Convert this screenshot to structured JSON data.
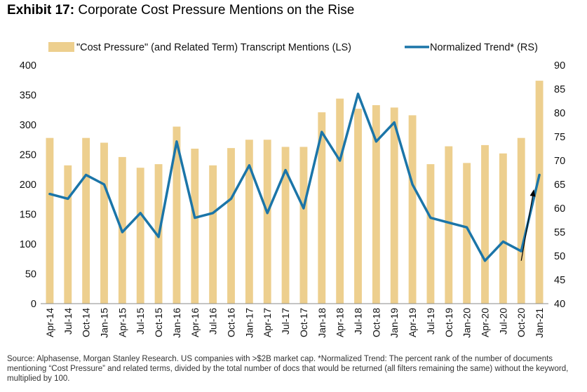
{
  "title": {
    "lead": "Exhibit 17:",
    "text": "Corporate Cost Pressure Mentions on the Rise"
  },
  "source": "Source: Alphasense, Morgan Stanley Research. US companies with >$2B market cap. *Normalized Trend: The percent rank of the number of documents mentioning “Cost Pressure” and related terms, divided by the total number of docs that would be returned (all filters remaining the same) without the keyword, multiplied by 100.",
  "colors": {
    "bar": "#EDCF8E",
    "line": "#1B75A8",
    "arrow": "#000000"
  },
  "chart_data": {
    "type": "bar",
    "categories": [
      "Apr-14",
      "Jul-14",
      "Oct-14",
      "Jan-15",
      "Apr-15",
      "Jul-15",
      "Oct-15",
      "Jan-16",
      "Apr-16",
      "Jul-16",
      "Oct-16",
      "Jan-17",
      "Apr-17",
      "Jul-17",
      "Oct-17",
      "Jan-18",
      "Apr-18",
      "Jul-18",
      "Oct-18",
      "Jan-19",
      "Apr-19",
      "Jul-19",
      "Oct-19",
      "Jan-20",
      "Apr-20",
      "Jul-20",
      "Oct-20",
      "Jan-21"
    ],
    "series": [
      {
        "name": "\"Cost Pressure\" (and Related Term) Transcript Mentions (LS)",
        "type": "bar",
        "axis": "left",
        "values": [
          278,
          232,
          278,
          270,
          246,
          228,
          234,
          297,
          260,
          232,
          261,
          275,
          275,
          263,
          263,
          321,
          344,
          327,
          333,
          329,
          316,
          234,
          264,
          236,
          266,
          252,
          278,
          374
        ]
      },
      {
        "name": "Normalized Trend* (RS)",
        "type": "line",
        "axis": "right",
        "values": [
          63,
          62,
          67,
          65,
          55,
          59,
          54,
          74,
          58,
          59,
          62,
          69,
          59,
          68,
          60,
          76,
          70,
          84,
          74,
          78,
          65,
          58,
          57,
          56,
          49,
          53,
          51,
          67
        ]
      }
    ],
    "y_left": {
      "min": 0,
      "max": 400,
      "ticks": [
        0,
        50,
        100,
        150,
        200,
        250,
        300,
        350,
        400
      ]
    },
    "y_right": {
      "min": 40,
      "max": 90,
      "ticks": [
        40,
        45,
        50,
        55,
        60,
        65,
        70,
        75,
        80,
        85,
        90
      ]
    },
    "legend": "top",
    "grid": false,
    "annotation": {
      "type": "arrow",
      "from": {
        "category": "Oct-20",
        "y_right": 49
      },
      "to": {
        "category": "Jan-21",
        "y_right": 65
      }
    }
  }
}
